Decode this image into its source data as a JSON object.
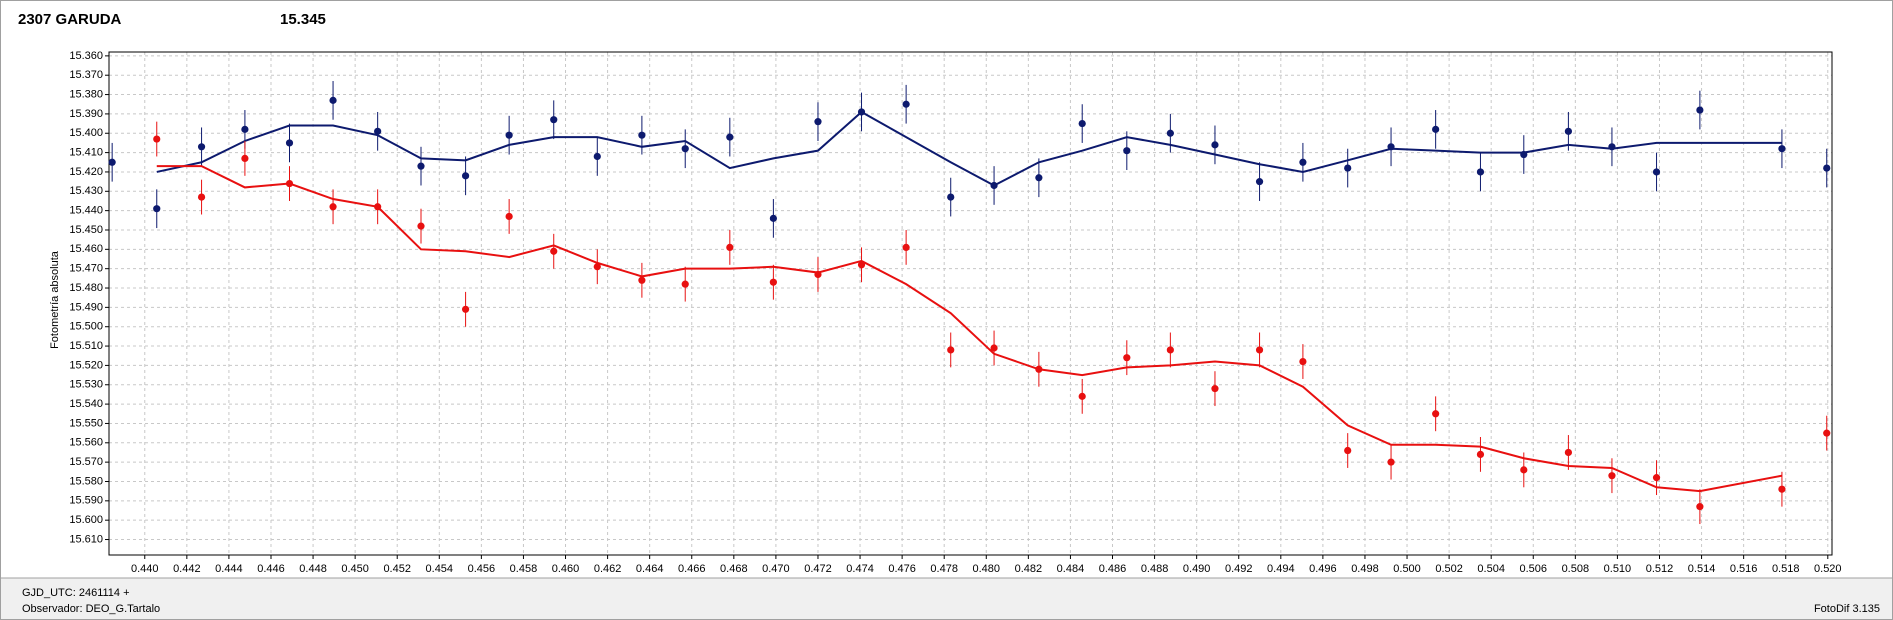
{
  "chart_data": {
    "type": "errorbar",
    "title": "2307 GARUDA",
    "title_color": "#e00000",
    "subtitle": "15.345",
    "subtitle_color": "#1a237e",
    "ylabel": "Fotometría absoluta",
    "y_inverted": true,
    "grid": true,
    "xlim": [
      0.4383,
      0.5202
    ],
    "ylim": [
      15.618,
      15.358
    ],
    "x": [
      0.43845,
      0.44057,
      0.4427,
      0.44476,
      0.44688,
      0.44895,
      0.45107,
      0.45313,
      0.45525,
      0.45732,
      0.45944,
      0.46151,
      0.46363,
      0.46569,
      0.46781,
      0.46988,
      0.472,
      0.47407,
      0.47619,
      0.47831,
      0.48037,
      0.4825,
      0.48456,
      0.48668,
      0.48875,
      0.49087,
      0.49299,
      0.49505,
      0.49718,
      0.49924,
      0.50136,
      0.50349,
      0.50555,
      0.50767,
      0.50974,
      0.51186,
      0.51392,
      0.51782,
      0.51995
    ],
    "series": [
      {
        "color": "#0d1a6e",
        "values": [
          15.415,
          15.439,
          15.407,
          15.398,
          15.405,
          15.383,
          15.399,
          15.417,
          15.422,
          15.401,
          15.393,
          15.412,
          15.401,
          15.408,
          15.402,
          15.444,
          15.394,
          15.389,
          15.385,
          15.433,
          15.427,
          15.423,
          15.395,
          15.409,
          15.4,
          15.406,
          15.425,
          15.415,
          15.418,
          15.407,
          15.398,
          15.42,
          15.411,
          15.399,
          15.407,
          15.42,
          15.388,
          15.408,
          15.418
        ],
        "errors": [
          0.01,
          0.01,
          0.01,
          0.01,
          0.01,
          0.01,
          0.01,
          0.01,
          0.01,
          0.01,
          0.01,
          0.01,
          0.01,
          0.01,
          0.01,
          0.01,
          0.01,
          0.01,
          0.01,
          0.01,
          0.01,
          0.01,
          0.01,
          0.01,
          0.01,
          0.01,
          0.01,
          0.01,
          0.01,
          0.01,
          0.01,
          0.01,
          0.01,
          0.01,
          0.01,
          0.01,
          0.01,
          0.01,
          0.01
        ],
        "fit": [
          null,
          15.42,
          15.415,
          15.404,
          15.396,
          15.396,
          15.401,
          15.413,
          15.414,
          15.406,
          15.402,
          15.402,
          15.407,
          15.404,
          15.418,
          15.413,
          15.409,
          15.389,
          15.402,
          15.415,
          15.427,
          15.415,
          15.409,
          15.402,
          15.406,
          15.411,
          15.416,
          15.42,
          15.414,
          15.408,
          15.409,
          15.41,
          15.41,
          15.406,
          15.408,
          15.405,
          15.405,
          15.405,
          null
        ]
      },
      {
        "color": "#e81010",
        "values": [
          null,
          15.403,
          15.433,
          15.413,
          15.426,
          15.438,
          15.438,
          15.448,
          15.491,
          15.443,
          15.461,
          15.469,
          15.476,
          15.478,
          15.459,
          15.477,
          15.473,
          15.468,
          15.459,
          15.512,
          15.511,
          15.522,
          15.536,
          15.516,
          15.512,
          15.532,
          15.512,
          15.518,
          15.564,
          15.57,
          15.545,
          15.566,
          15.574,
          15.565,
          15.577,
          15.578,
          15.593,
          15.584,
          15.555
        ],
        "errors": [
          null,
          0.009,
          0.009,
          0.009,
          0.009,
          0.009,
          0.009,
          0.009,
          0.009,
          0.009,
          0.009,
          0.009,
          0.009,
          0.009,
          0.009,
          0.009,
          0.009,
          0.009,
          0.009,
          0.009,
          0.009,
          0.009,
          0.009,
          0.009,
          0.009,
          0.009,
          0.009,
          0.009,
          0.009,
          0.009,
          0.009,
          0.009,
          0.009,
          0.009,
          0.009,
          0.009,
          0.009,
          0.009,
          0.009
        ],
        "fit": [
          null,
          15.417,
          15.417,
          15.428,
          15.426,
          15.434,
          15.438,
          15.46,
          15.461,
          15.464,
          15.458,
          15.467,
          15.474,
          15.47,
          15.47,
          15.469,
          15.472,
          15.466,
          15.478,
          15.493,
          15.514,
          15.522,
          15.525,
          15.521,
          15.52,
          15.518,
          15.52,
          15.531,
          15.551,
          15.561,
          15.561,
          15.562,
          15.568,
          15.572,
          15.573,
          15.583,
          15.585,
          15.577,
          null
        ]
      }
    ],
    "yticks": [
      {
        "value": 15.36,
        "label": "15.360"
      },
      {
        "value": 15.37,
        "label": "15.370"
      },
      {
        "value": 15.38,
        "label": "15.380"
      },
      {
        "value": 15.39,
        "label": "15.390"
      },
      {
        "value": 15.4,
        "label": "15.400"
      },
      {
        "value": 15.41,
        "label": "15.410"
      },
      {
        "value": 15.42,
        "label": "15.420"
      },
      {
        "value": 15.43,
        "label": "15.430"
      },
      {
        "value": 15.44,
        "label": "15.440"
      },
      {
        "value": 15.45,
        "label": "15.450"
      },
      {
        "value": 15.46,
        "label": "15.460"
      },
      {
        "value": 15.47,
        "label": "15.470"
      },
      {
        "value": 15.48,
        "label": "15.480"
      },
      {
        "value": 15.49,
        "label": "15.490"
      },
      {
        "value": 15.5,
        "label": "15.500"
      },
      {
        "value": 15.51,
        "label": "15.510"
      },
      {
        "value": 15.52,
        "label": "15.520"
      },
      {
        "value": 15.53,
        "label": "15.530"
      },
      {
        "value": 15.54,
        "label": "15.540"
      },
      {
        "value": 15.55,
        "label": "15.550"
      },
      {
        "value": 15.56,
        "label": "15.560"
      },
      {
        "value": 15.57,
        "label": "15.570"
      },
      {
        "value": 15.58,
        "label": "15.580"
      },
      {
        "value": 15.59,
        "label": "15.590"
      },
      {
        "value": 15.6,
        "label": "15.600"
      },
      {
        "value": 15.61,
        "label": "15.610"
      }
    ],
    "xticks": [
      {
        "value": 0.44,
        "label": "0.440"
      },
      {
        "value": 0.442,
        "label": "0.442"
      },
      {
        "value": 0.444,
        "label": "0.444"
      },
      {
        "value": 0.446,
        "label": "0.446"
      },
      {
        "value": 0.448,
        "label": "0.448"
      },
      {
        "value": 0.45,
        "label": "0.450"
      },
      {
        "value": 0.452,
        "label": "0.452"
      },
      {
        "value": 0.454,
        "label": "0.454"
      },
      {
        "value": 0.456,
        "label": "0.456"
      },
      {
        "value": 0.458,
        "label": "0.458"
      },
      {
        "value": 0.46,
        "label": "0.460"
      },
      {
        "value": 0.462,
        "label": "0.462"
      },
      {
        "value": 0.464,
        "label": "0.464"
      },
      {
        "value": 0.466,
        "label": "0.466"
      },
      {
        "value": 0.468,
        "label": "0.468"
      },
      {
        "value": 0.47,
        "label": "0.470"
      },
      {
        "value": 0.472,
        "label": "0.472"
      },
      {
        "value": 0.474,
        "label": "0.474"
      },
      {
        "value": 0.476,
        "label": "0.476"
      },
      {
        "value": 0.478,
        "label": "0.478"
      },
      {
        "value": 0.48,
        "label": "0.480"
      },
      {
        "value": 0.482,
        "label": "0.482"
      },
      {
        "value": 0.484,
        "label": "0.484"
      },
      {
        "value": 0.486,
        "label": "0.486"
      },
      {
        "value": 0.488,
        "label": "0.488"
      },
      {
        "value": 0.49,
        "label": "0.490"
      },
      {
        "value": 0.492,
        "label": "0.492"
      },
      {
        "value": 0.494,
        "label": "0.494"
      },
      {
        "value": 0.496,
        "label": "0.496"
      },
      {
        "value": 0.498,
        "label": "0.498"
      },
      {
        "value": 0.5,
        "label": "0.500"
      },
      {
        "value": 0.502,
        "label": "0.502"
      },
      {
        "value": 0.504,
        "label": "0.504"
      },
      {
        "value": 0.506,
        "label": "0.506"
      },
      {
        "value": 0.508,
        "label": "0.508"
      },
      {
        "value": 0.51,
        "label": "0.510"
      },
      {
        "value": 0.512,
        "label": "0.512"
      },
      {
        "value": 0.514,
        "label": "0.514"
      },
      {
        "value": 0.516,
        "label": "0.516"
      },
      {
        "value": 0.518,
        "label": "0.518"
      },
      {
        "value": 0.52,
        "label": "0.520"
      }
    ],
    "footer": {
      "epoch": "GJD_UTC: 2461114 +",
      "observer": "Observador: DEO_G.Tartalo",
      "software": "FotoDif 3.135"
    }
  }
}
